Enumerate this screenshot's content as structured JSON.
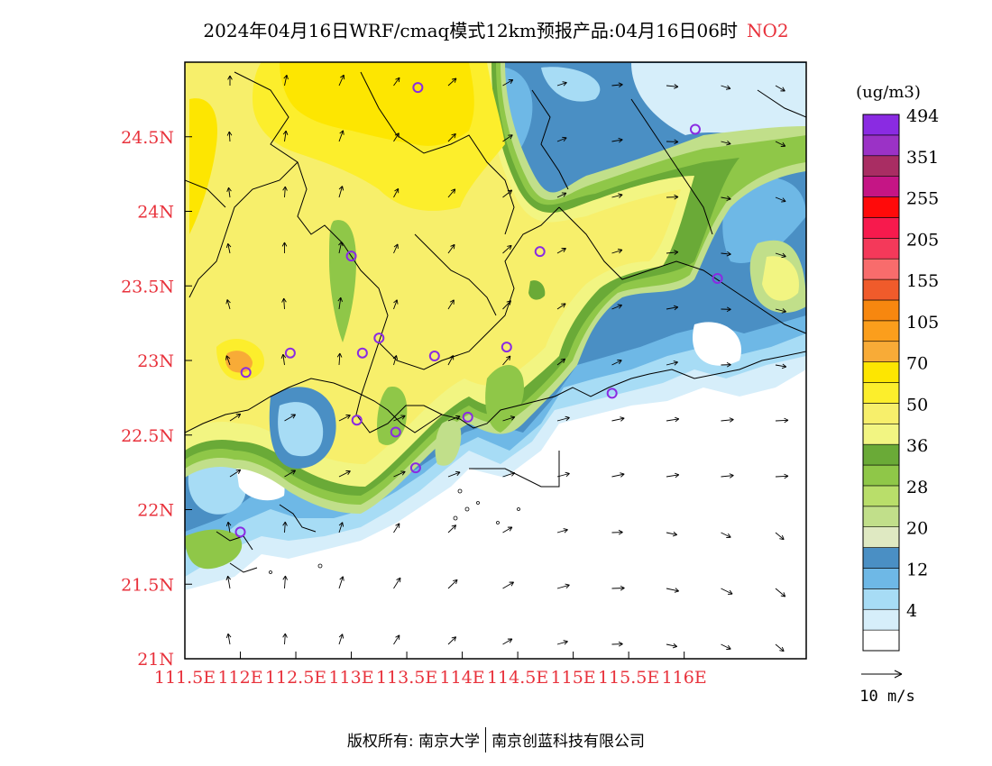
{
  "title": {
    "main": "2024年04月16日WRF/cmaq模式12km预报产品:04月16日06时",
    "pollutant": "NO2"
  },
  "map": {
    "lon_range": [
      111.5,
      117.1
    ],
    "lat_range": [
      21.0,
      25.0
    ],
    "x_ticks": [
      {
        "lon": 111.5,
        "label": "111.5E"
      },
      {
        "lon": 112.0,
        "label": "112E"
      },
      {
        "lon": 112.5,
        "label": "112.5E"
      },
      {
        "lon": 113.0,
        "label": "113E"
      },
      {
        "lon": 113.5,
        "label": "113.5E"
      },
      {
        "lon": 114.0,
        "label": "114E"
      },
      {
        "lon": 114.5,
        "label": "114.5E"
      },
      {
        "lon": 115.0,
        "label": "115E"
      },
      {
        "lon": 115.5,
        "label": "115.5E"
      },
      {
        "lon": 116.0,
        "label": "116E"
      }
    ],
    "y_ticks": [
      {
        "lat": 21.0,
        "label": "21N"
      },
      {
        "lat": 21.5,
        "label": "21.5N"
      },
      {
        "lat": 22.0,
        "label": "22N"
      },
      {
        "lat": 22.5,
        "label": "22.5N"
      },
      {
        "lat": 23.0,
        "label": "23N"
      },
      {
        "lat": 23.5,
        "label": "23.5N"
      },
      {
        "lat": 24.0,
        "label": "24N"
      },
      {
        "lat": 24.5,
        "label": "24.5N"
      }
    ],
    "tick_label_color": "#e8323c",
    "cities": [
      {
        "lon": 113.6,
        "lat": 24.83
      },
      {
        "lon": 116.1,
        "lat": 24.55
      },
      {
        "lon": 113.0,
        "lat": 23.7
      },
      {
        "lon": 114.7,
        "lat": 23.73
      },
      {
        "lon": 116.3,
        "lat": 23.55
      },
      {
        "lon": 113.25,
        "lat": 23.15
      },
      {
        "lon": 113.1,
        "lat": 23.05
      },
      {
        "lon": 112.45,
        "lat": 23.05
      },
      {
        "lon": 113.75,
        "lat": 23.03
      },
      {
        "lon": 114.4,
        "lat": 23.09
      },
      {
        "lon": 112.05,
        "lat": 22.92
      },
      {
        "lon": 115.35,
        "lat": 22.78
      },
      {
        "lon": 113.05,
        "lat": 22.6
      },
      {
        "lon": 113.4,
        "lat": 22.52
      },
      {
        "lon": 114.05,
        "lat": 22.62
      },
      {
        "lon": 113.58,
        "lat": 22.28
      },
      {
        "lon": 112.0,
        "lat": 21.85
      }
    ],
    "wind": {
      "u": [],
      "v": []
    }
  },
  "legend": {
    "unit": "(ug/m3)",
    "levels": [
      {
        "label": "",
        "color": "#ffffff"
      },
      {
        "label": "4",
        "color": "#d6eefa"
      },
      {
        "label": "",
        "color": "#a7dcf5"
      },
      {
        "label": "12",
        "color": "#6eb8e6"
      },
      {
        "label": "",
        "color": "#4a8fc4"
      },
      {
        "label": "20",
        "color": "#dfe9c2"
      },
      {
        "label": "",
        "color": "#c1df8a"
      },
      {
        "label": "28",
        "color": "#b9de6a"
      },
      {
        "label": "",
        "color": "#8fc748"
      },
      {
        "label": "36",
        "color": "#6aaa37"
      },
      {
        "label": "",
        "color": "#f2f582"
      },
      {
        "label": "50",
        "color": "#f7ef6b"
      },
      {
        "label": "",
        "color": "#fcee2c"
      },
      {
        "label": "70",
        "color": "#fde601"
      },
      {
        "label": "",
        "color": "#f8ab37"
      },
      {
        "label": "105",
        "color": "#fb9e1c"
      },
      {
        "label": "",
        "color": "#f7870f"
      },
      {
        "label": "155",
        "color": "#f05b2b"
      },
      {
        "label": "",
        "color": "#f86c6c"
      },
      {
        "label": "205",
        "color": "#f4395a"
      },
      {
        "label": "",
        "color": "#f71a4d"
      },
      {
        "label": "255",
        "color": "#ff0a0a"
      },
      {
        "label": "",
        "color": "#c51585"
      },
      {
        "label": "351",
        "color": "#a92d63"
      },
      {
        "label": "",
        "color": "#9b32c6"
      },
      {
        "label": "494",
        "color": "#8a2be2"
      }
    ],
    "vector_key": "10 m/s"
  },
  "footer": {
    "copyright": "版权所有: 南京大学",
    "company": "南京创蓝科技有限公司"
  },
  "colors": {
    "boundary": "#000000",
    "city_marker": "#8a2be2"
  }
}
